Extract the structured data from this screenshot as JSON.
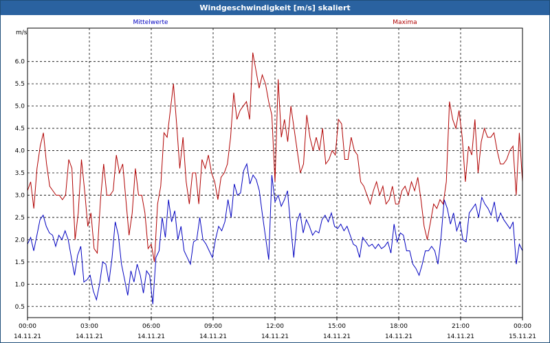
{
  "window": {
    "title": "Windgeschwindigkeit [m/s] skaliert"
  },
  "chart_data": {
    "type": "line",
    "title": "Windgeschwindigkeit [m/s] skaliert",
    "ylabel": "m/s",
    "xlabel": "",
    "ylim": [
      0.25,
      6.75
    ],
    "xlim": [
      0,
      24
    ],
    "grid": true,
    "yticks": [
      "0.5",
      "1.0",
      "1.5",
      "2.0",
      "2.5",
      "3.0",
      "3.5",
      "4.0",
      "4.5",
      "5.0",
      "5.5",
      "6.0"
    ],
    "xticks": [
      {
        "time": "00:00",
        "date": "14.11.21"
      },
      {
        "time": "03:00",
        "date": "14.11.21"
      },
      {
        "time": "06:00",
        "date": "14.11.21"
      },
      {
        "time": "09:00",
        "date": "14.11.21"
      },
      {
        "time": "12:00",
        "date": "14.11.21"
      },
      {
        "time": "15:00",
        "date": "14.11.21"
      },
      {
        "time": "18:00",
        "date": "14.11.21"
      },
      {
        "time": "21:00",
        "date": "14.11.21"
      },
      {
        "time": "00:00",
        "date": "15.11.21"
      }
    ],
    "series": [
      {
        "name": "Mittelwerte",
        "color": "#0000c0",
        "values": [
          1.9,
          2.05,
          1.75,
          2.1,
          2.45,
          2.55,
          2.3,
          2.15,
          2.1,
          1.85,
          2.1,
          2.0,
          2.2,
          2.0,
          1.6,
          1.2,
          1.65,
          1.85,
          1.05,
          1.1,
          1.2,
          0.85,
          0.65,
          1.0,
          1.5,
          1.45,
          1.05,
          1.6,
          2.4,
          2.1,
          1.45,
          1.1,
          0.75,
          1.3,
          1.05,
          1.45,
          1.2,
          0.8,
          1.3,
          1.2,
          0.55,
          1.6,
          1.75,
          2.5,
          2.05,
          2.9,
          2.4,
          2.65,
          2.0,
          2.3,
          1.75,
          1.6,
          1.45,
          1.95,
          2.0,
          2.5,
          2.0,
          1.9,
          1.75,
          1.6,
          2.0,
          2.3,
          2.2,
          2.4,
          2.9,
          2.5,
          3.25,
          3.0,
          3.05,
          3.55,
          3.7,
          3.25,
          3.45,
          3.35,
          3.1,
          2.55,
          2.05,
          1.55,
          3.45,
          2.85,
          3.0,
          2.75,
          2.9,
          3.1,
          2.3,
          1.6,
          2.4,
          2.6,
          2.15,
          2.45,
          2.3,
          2.1,
          2.2,
          2.15,
          2.45,
          2.55,
          2.4,
          2.6,
          2.3,
          2.25,
          2.35,
          2.2,
          2.3,
          2.1,
          1.9,
          1.85,
          1.6,
          2.05,
          1.95,
          1.85,
          1.9,
          1.8,
          1.9,
          1.8,
          1.85,
          1.95,
          1.7,
          2.35,
          1.95,
          2.15,
          2.1,
          1.75,
          1.75,
          1.45,
          1.35,
          1.2,
          1.45,
          1.75,
          1.75,
          1.85,
          1.75,
          1.45,
          2.05,
          2.9,
          2.7,
          2.35,
          2.6,
          2.2,
          2.4,
          2.0,
          1.95,
          2.6,
          2.7,
          2.8,
          2.5,
          2.95,
          2.8,
          2.7,
          2.55,
          2.85,
          2.4,
          2.6,
          2.45,
          2.35,
          2.25,
          2.4,
          1.45,
          1.9,
          1.75
        ]
      },
      {
        "name": "Maxima",
        "color": "#b00000",
        "values": [
          3.1,
          3.3,
          2.7,
          3.6,
          4.1,
          4.4,
          3.7,
          3.2,
          3.1,
          3.0,
          3.0,
          2.9,
          3.0,
          3.8,
          3.6,
          2.0,
          2.6,
          3.8,
          3.1,
          2.3,
          2.6,
          1.8,
          1.7,
          2.9,
          3.7,
          3.0,
          3.0,
          3.1,
          3.9,
          3.5,
          3.7,
          2.9,
          2.1,
          2.6,
          3.6,
          3.0,
          3.0,
          2.6,
          1.8,
          1.9,
          1.5,
          2.8,
          3.2,
          4.4,
          4.3,
          4.9,
          5.5,
          4.6,
          3.6,
          4.3,
          3.3,
          2.8,
          3.5,
          3.5,
          2.8,
          3.8,
          3.6,
          3.9,
          3.5,
          3.3,
          2.9,
          3.4,
          3.5,
          3.7,
          4.3,
          5.3,
          4.7,
          4.9,
          5.0,
          5.1,
          4.7,
          6.2,
          5.8,
          5.4,
          5.7,
          5.5,
          5.1,
          4.8,
          3.3,
          5.6,
          4.3,
          4.7,
          4.2,
          5.0,
          4.5,
          4.0,
          3.5,
          3.7,
          4.8,
          4.3,
          4.0,
          4.3,
          4.0,
          4.5,
          3.7,
          3.8,
          4.0,
          3.9,
          4.7,
          4.6,
          3.8,
          3.8,
          4.3,
          4.0,
          3.9,
          3.3,
          3.2,
          3.0,
          2.8,
          3.1,
          3.3,
          3.0,
          3.2,
          2.8,
          2.9,
          3.2,
          2.8,
          2.8,
          3.1,
          3.2,
          3.0,
          3.3,
          3.1,
          3.4,
          2.9,
          2.3,
          2.0,
          2.4,
          2.8,
          2.7,
          2.9,
          2.8,
          3.3,
          5.1,
          4.7,
          4.5,
          4.9,
          4.3,
          3.3,
          4.1,
          3.9,
          4.7,
          3.5,
          4.2,
          4.5,
          4.3,
          4.3,
          4.4,
          4.0,
          3.7,
          3.7,
          3.8,
          4.0,
          4.1,
          3.0,
          4.4,
          3.3
        ]
      }
    ]
  }
}
